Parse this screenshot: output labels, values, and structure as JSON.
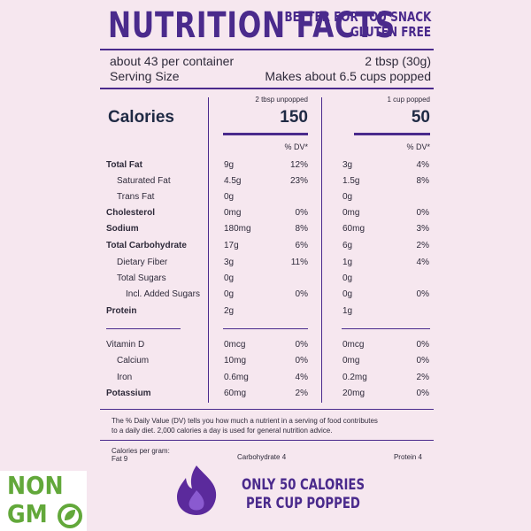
{
  "header": {
    "title": "NUTRITION FACTS",
    "tagline": [
      "BETTER FOR YOU SNACK",
      "GLUTEN FREE"
    ]
  },
  "serving": {
    "per_container": "about 43 per container",
    "size_unpopped": "2 tbsp (30g)",
    "size_label": "Serving Size",
    "size_popped": "Makes about 6.5 cups popped"
  },
  "columns": [
    "2 tbsp unpopped",
    "1 cup popped"
  ],
  "calories": {
    "label": "Calories",
    "values": [
      "150",
      "50"
    ]
  },
  "dv_header": "% DV*",
  "rows": [
    {
      "name": "Total Fat",
      "a1": "9g",
      "d1": "12%",
      "a2": "3g",
      "d2": "4%"
    },
    {
      "name": "Saturated Fat",
      "a1": "4.5g",
      "d1": "23%",
      "a2": "1.5g",
      "d2": "8%"
    },
    {
      "name": "Trans Fat",
      "a1": "0g",
      "a2": "0g"
    },
    {
      "name": "Cholesterol",
      "a1": "0mg",
      "d1": "0%",
      "a2": "0mg",
      "d2": "0%"
    },
    {
      "name": "Sodium",
      "a1": "180mg",
      "d1": "8%",
      "a2": "60mg",
      "d2": "3%"
    },
    {
      "name": "Total Carbohydrate",
      "a1": "17g",
      "d1": "6%",
      "a2": "6g",
      "d2": "2%"
    },
    {
      "name": "Dietary Fiber",
      "a1": "3g",
      "d1": "11%",
      "a2": "1g",
      "d2": "4%"
    },
    {
      "name": "Total Sugars",
      "a1": "0g",
      "a2": "0g"
    },
    {
      "name": "Incl. Added Sugars",
      "a1": "0g",
      "d1": "0%",
      "a2": "0g",
      "d2": "0%"
    },
    {
      "name": "Protein",
      "a1": "2g",
      "a2": "1g"
    },
    {
      "name": "Vitamin D",
      "a1": "0mcg",
      "d1": "0%",
      "a2": "0mcg",
      "d2": "0%"
    },
    {
      "name": "Calcium",
      "a1": "10mg",
      "d1": "0%",
      "a2": "0mg",
      "d2": "0%"
    },
    {
      "name": "Iron",
      "a1": "0.6mg",
      "d1": "4%",
      "a2": "0.2mg",
      "d2": "2%"
    },
    {
      "name": "Potassium",
      "a1": "60mg",
      "d1": "2%",
      "a2": "20mg",
      "d2": "0%"
    }
  ],
  "footnote": [
    "The % Daily Value (DV) tells you how much a nutrient in a serving of food contributes",
    "to a daily diet. 2,000 calories a day is used for general nutrition advice."
  ],
  "calories_per_gram": {
    "label": "Calories per gram:",
    "fat": "Fat 9",
    "carbohydrate": "Carbohydrate 4",
    "protein": "Protein 4"
  },
  "badge": {
    "top": "NON",
    "bottom": "GM"
  },
  "promo": [
    "ONLY 50 CALORIES",
    "PER CUP POPPED"
  ]
}
